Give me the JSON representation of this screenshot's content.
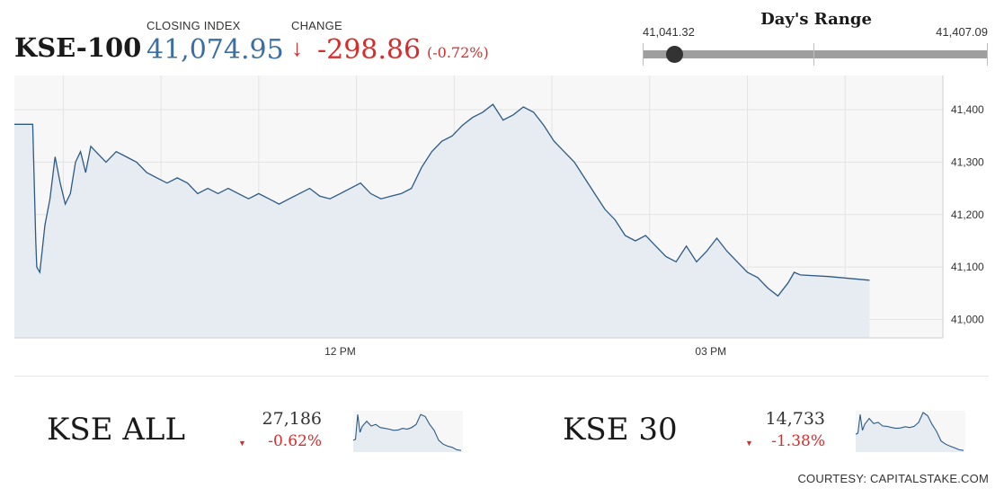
{
  "header": {
    "ticker": "KSE-100",
    "closing_label": "CLOSING INDEX",
    "closing_value": "41,074.95",
    "change_label": "CHANGE",
    "change_arrow": "↓",
    "change_value": "-298.86",
    "change_pct": "(-0.72%)",
    "accent_color": "#3a6ea5",
    "negative_color": "#d62c2c"
  },
  "days_range": {
    "label": "Day's Range",
    "low": "41,041.32",
    "high": "41,407.09",
    "position_fraction": 0.09
  },
  "chart_data": [
    {
      "type": "area",
      "title": "",
      "xlabel": "",
      "ylabel": "",
      "x_ticks": [
        "12 PM",
        "03 PM"
      ],
      "y_ticks": [
        "41,000",
        "41,100",
        "41,200",
        "41,300",
        "41,400"
      ],
      "ylim": [
        40965,
        41465
      ],
      "grid": true,
      "y_axis_side": "right",
      "series": [
        {
          "values": [
            [
              0.0,
              41372
            ],
            [
              0.9,
              41372
            ],
            [
              1.05,
              41150
            ],
            [
              1.1,
              41100
            ],
            [
              1.25,
              41090
            ],
            [
              1.5,
              41180
            ],
            [
              1.75,
              41230
            ],
            [
              2.0,
              41310
            ],
            [
              2.25,
              41260
            ],
            [
              2.5,
              41220
            ],
            [
              2.75,
              41240
            ],
            [
              3.0,
              41300
            ],
            [
              3.25,
              41320
            ],
            [
              3.5,
              41280
            ],
            [
              3.75,
              41330
            ],
            [
              4.0,
              41320
            ],
            [
              4.5,
              41300
            ],
            [
              5.0,
              41320
            ],
            [
              5.5,
              41310
            ],
            [
              6.0,
              41300
            ],
            [
              6.5,
              41280
            ],
            [
              7.0,
              41270
            ],
            [
              7.5,
              41260
            ],
            [
              8.0,
              41270
            ],
            [
              8.5,
              41260
            ],
            [
              9.0,
              41240
            ],
            [
              9.5,
              41250
            ],
            [
              10.0,
              41240
            ],
            [
              10.5,
              41250
            ],
            [
              11.0,
              41240
            ],
            [
              11.5,
              41230
            ],
            [
              12.0,
              41240
            ],
            [
              12.5,
              41230
            ],
            [
              13.0,
              41220
            ],
            [
              13.5,
              41230
            ],
            [
              14.0,
              41240
            ],
            [
              14.5,
              41250
            ],
            [
              15.0,
              41235
            ],
            [
              15.5,
              41230
            ],
            [
              16.0,
              41240
            ],
            [
              16.5,
              41250
            ],
            [
              17.0,
              41260
            ],
            [
              17.5,
              41240
            ],
            [
              18.0,
              41230
            ],
            [
              18.5,
              41235
            ],
            [
              19.0,
              41240
            ],
            [
              19.5,
              41250
            ],
            [
              20.0,
              41290
            ],
            [
              20.5,
              41320
            ],
            [
              21.0,
              41340
            ],
            [
              21.5,
              41350
            ],
            [
              22.0,
              41370
            ],
            [
              22.5,
              41385
            ],
            [
              23.0,
              41395
            ],
            [
              23.5,
              41410
            ],
            [
              24.0,
              41380
            ],
            [
              24.5,
              41390
            ],
            [
              25.0,
              41405
            ],
            [
              25.5,
              41395
            ],
            [
              26.0,
              41370
            ],
            [
              26.5,
              41340
            ],
            [
              27.0,
              41320
            ],
            [
              27.5,
              41300
            ],
            [
              28.0,
              41270
            ],
            [
              28.5,
              41240
            ],
            [
              29.0,
              41210
            ],
            [
              29.5,
              41190
            ],
            [
              30.0,
              41160
            ],
            [
              30.5,
              41150
            ],
            [
              31.0,
              41160
            ],
            [
              31.5,
              41140
            ],
            [
              32.0,
              41120
            ],
            [
              32.5,
              41110
            ],
            [
              33.0,
              41140
            ],
            [
              33.5,
              41110
            ],
            [
              34.0,
              41130
            ],
            [
              34.5,
              41155
            ],
            [
              35.0,
              41130
            ],
            [
              35.5,
              41110
            ],
            [
              36.0,
              41090
            ],
            [
              36.5,
              41080
            ],
            [
              37.0,
              41060
            ],
            [
              37.5,
              41045
            ],
            [
              38.0,
              41070
            ],
            [
              38.3,
              41090
            ],
            [
              38.6,
              41085
            ],
            [
              40.0,
              41082
            ],
            [
              42.0,
              41075
            ]
          ]
        }
      ]
    },
    {
      "type": "area",
      "title": "KSE ALL",
      "series": [
        {
          "values": [
            [
              0,
              0.3
            ],
            [
              0.5,
              0.32
            ],
            [
              1,
              0.95
            ],
            [
              1.5,
              0.5
            ],
            [
              2,
              0.65
            ],
            [
              3,
              0.78
            ],
            [
              4,
              0.66
            ],
            [
              5,
              0.7
            ],
            [
              6,
              0.62
            ],
            [
              7,
              0.6
            ],
            [
              8,
              0.58
            ],
            [
              9,
              0.55
            ],
            [
              10,
              0.56
            ],
            [
              11,
              0.6
            ],
            [
              12,
              0.58
            ],
            [
              13,
              0.62
            ],
            [
              14,
              0.7
            ],
            [
              15,
              0.95
            ],
            [
              16,
              0.9
            ],
            [
              17,
              0.7
            ],
            [
              18,
              0.55
            ],
            [
              19,
              0.3
            ],
            [
              20,
              0.2
            ],
            [
              21,
              0.15
            ],
            [
              22,
              0.12
            ],
            [
              23,
              0.06
            ],
            [
              24,
              0.04
            ]
          ]
        }
      ],
      "last": "27,186",
      "change": "-0.62%"
    },
    {
      "type": "area",
      "title": "KSE 30",
      "series": [
        {
          "values": [
            [
              0,
              0.45
            ],
            [
              0.5,
              0.48
            ],
            [
              1,
              0.95
            ],
            [
              1.5,
              0.55
            ],
            [
              2,
              0.7
            ],
            [
              3,
              0.85
            ],
            [
              4,
              0.72
            ],
            [
              5,
              0.75
            ],
            [
              6,
              0.66
            ],
            [
              7,
              0.65
            ],
            [
              8,
              0.62
            ],
            [
              9,
              0.6
            ],
            [
              10,
              0.61
            ],
            [
              11,
              0.64
            ],
            [
              12,
              0.62
            ],
            [
              13,
              0.65
            ],
            [
              14,
              0.75
            ],
            [
              15,
              1.0
            ],
            [
              16,
              0.92
            ],
            [
              17,
              0.7
            ],
            [
              18,
              0.52
            ],
            [
              19,
              0.28
            ],
            [
              20,
              0.2
            ],
            [
              21,
              0.15
            ],
            [
              22,
              0.11
            ],
            [
              23,
              0.06
            ],
            [
              24,
              0.04
            ]
          ]
        }
      ],
      "last": "14,733",
      "change": "-1.38%"
    }
  ],
  "summary": {
    "kse_all": {
      "name": "KSE ALL",
      "value": "27,186",
      "change": "-0.62%"
    },
    "kse_30": {
      "name": "KSE 30",
      "value": "14,733",
      "change": "-1.38%"
    }
  },
  "footer": {
    "courtesy": "COURTESY: CAPITALSTAKE.COM"
  },
  "colors": {
    "line": "#2c5a86",
    "fill": "#e6ecf2",
    "grid": "#e3e3e3"
  }
}
